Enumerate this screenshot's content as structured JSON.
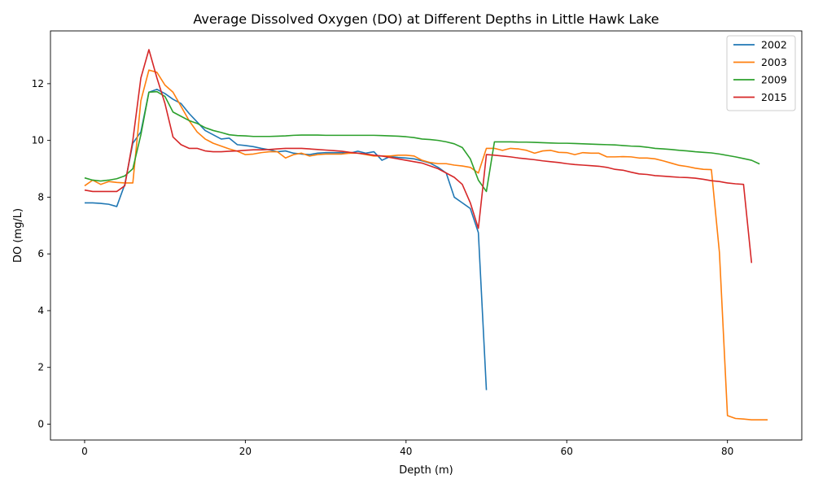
{
  "chart_data": {
    "type": "line",
    "title": "Average Dissolved Oxygen (DO) at Different Depths in Little Hawk Lake",
    "xlabel": "Depth (m)",
    "ylabel": "DO (mg/L)",
    "xlim": [
      -4.25,
      89.25
    ],
    "ylim": [
      -0.56,
      13.86
    ],
    "xticks": [
      0,
      20,
      40,
      60,
      80
    ],
    "yticks": [
      0,
      2,
      4,
      6,
      8,
      10,
      12
    ],
    "grid": false,
    "legend_position": "top-right",
    "series": [
      {
        "name": "2002",
        "color": "#1f77b4",
        "points": [
          [
            0,
            7.8
          ],
          [
            1,
            7.8
          ],
          [
            2,
            7.78
          ],
          [
            3,
            7.75
          ],
          [
            4,
            7.67
          ],
          [
            5,
            8.45
          ],
          [
            6,
            9.9
          ],
          [
            7,
            10.3
          ],
          [
            8,
            11.7
          ],
          [
            9,
            11.8
          ],
          [
            10,
            11.65
          ],
          [
            11,
            11.45
          ],
          [
            12,
            11.3
          ],
          [
            13,
            10.95
          ],
          [
            14,
            10.65
          ],
          [
            15,
            10.35
          ],
          [
            16,
            10.2
          ],
          [
            17,
            10.05
          ],
          [
            18,
            10.08
          ],
          [
            19,
            9.85
          ],
          [
            20,
            9.82
          ],
          [
            21,
            9.78
          ],
          [
            22,
            9.72
          ],
          [
            23,
            9.67
          ],
          [
            24,
            9.6
          ],
          [
            25,
            9.63
          ],
          [
            26,
            9.55
          ],
          [
            27,
            9.52
          ],
          [
            28,
            9.5
          ],
          [
            29,
            9.55
          ],
          [
            30,
            9.57
          ],
          [
            31,
            9.57
          ],
          [
            32,
            9.57
          ],
          [
            33,
            9.55
          ],
          [
            34,
            9.62
          ],
          [
            35,
            9.55
          ],
          [
            36,
            9.6
          ],
          [
            37,
            9.3
          ],
          [
            38,
            9.43
          ],
          [
            39,
            9.4
          ],
          [
            40,
            9.38
          ],
          [
            41,
            9.35
          ],
          [
            42,
            9.28
          ],
          [
            43,
            9.2
          ],
          [
            44,
            9.05
          ],
          [
            45,
            8.85
          ],
          [
            46,
            8.0
          ],
          [
            47,
            7.8
          ],
          [
            48,
            7.6
          ],
          [
            49,
            6.75
          ],
          [
            50,
            1.2
          ]
        ]
      },
      {
        "name": "2003",
        "color": "#ff7f0e",
        "points": [
          [
            0,
            8.4
          ],
          [
            1,
            8.6
          ],
          [
            2,
            8.45
          ],
          [
            3,
            8.55
          ],
          [
            4,
            8.52
          ],
          [
            5,
            8.5
          ],
          [
            6,
            8.5
          ],
          [
            7,
            11.4
          ],
          [
            8,
            12.48
          ],
          [
            9,
            12.4
          ],
          [
            10,
            11.95
          ],
          [
            11,
            11.7
          ],
          [
            12,
            11.2
          ],
          [
            13,
            10.7
          ],
          [
            14,
            10.3
          ],
          [
            15,
            10.05
          ],
          [
            16,
            9.9
          ],
          [
            17,
            9.8
          ],
          [
            18,
            9.7
          ],
          [
            19,
            9.62
          ],
          [
            20,
            9.5
          ],
          [
            21,
            9.52
          ],
          [
            22,
            9.57
          ],
          [
            23,
            9.6
          ],
          [
            24,
            9.6
          ],
          [
            25,
            9.38
          ],
          [
            26,
            9.5
          ],
          [
            27,
            9.55
          ],
          [
            28,
            9.45
          ],
          [
            29,
            9.5
          ],
          [
            30,
            9.52
          ],
          [
            31,
            9.52
          ],
          [
            32,
            9.52
          ],
          [
            33,
            9.55
          ],
          [
            34,
            9.55
          ],
          [
            35,
            9.5
          ],
          [
            36,
            9.45
          ],
          [
            37,
            9.45
          ],
          [
            38,
            9.45
          ],
          [
            39,
            9.48
          ],
          [
            40,
            9.48
          ],
          [
            41,
            9.45
          ],
          [
            42,
            9.3
          ],
          [
            43,
            9.22
          ],
          [
            44,
            9.18
          ],
          [
            45,
            9.18
          ],
          [
            46,
            9.13
          ],
          [
            47,
            9.1
          ],
          [
            48,
            9.05
          ],
          [
            49,
            8.85
          ],
          [
            50,
            9.72
          ],
          [
            51,
            9.72
          ],
          [
            52,
            9.65
          ],
          [
            53,
            9.72
          ],
          [
            54,
            9.7
          ],
          [
            55,
            9.65
          ],
          [
            56,
            9.55
          ],
          [
            57,
            9.63
          ],
          [
            58,
            9.65
          ],
          [
            59,
            9.58
          ],
          [
            60,
            9.57
          ],
          [
            61,
            9.5
          ],
          [
            62,
            9.57
          ],
          [
            63,
            9.55
          ],
          [
            64,
            9.55
          ],
          [
            65,
            9.42
          ],
          [
            66,
            9.42
          ],
          [
            67,
            9.43
          ],
          [
            68,
            9.42
          ],
          [
            69,
            9.38
          ],
          [
            70,
            9.38
          ],
          [
            71,
            9.35
          ],
          [
            72,
            9.28
          ],
          [
            73,
            9.2
          ],
          [
            74,
            9.12
          ],
          [
            75,
            9.08
          ],
          [
            76,
            9.02
          ],
          [
            77,
            8.98
          ],
          [
            78,
            8.97
          ],
          [
            79,
            6.05
          ],
          [
            80,
            0.3
          ],
          [
            81,
            0.2
          ],
          [
            82,
            0.18
          ],
          [
            83,
            0.15
          ],
          [
            84,
            0.15
          ],
          [
            85,
            0.15
          ]
        ]
      },
      {
        "name": "2009",
        "color": "#2ca02c",
        "points": [
          [
            0,
            8.68
          ],
          [
            1,
            8.6
          ],
          [
            2,
            8.57
          ],
          [
            3,
            8.6
          ],
          [
            4,
            8.65
          ],
          [
            5,
            8.75
          ],
          [
            6,
            9.0
          ],
          [
            7,
            10.2
          ],
          [
            8,
            11.7
          ],
          [
            9,
            11.72
          ],
          [
            10,
            11.55
          ],
          [
            11,
            11.0
          ],
          [
            12,
            10.85
          ],
          [
            13,
            10.7
          ],
          [
            14,
            10.6
          ],
          [
            15,
            10.45
          ],
          [
            16,
            10.35
          ],
          [
            17,
            10.28
          ],
          [
            18,
            10.2
          ],
          [
            19,
            10.17
          ],
          [
            20,
            10.16
          ],
          [
            21,
            10.14
          ],
          [
            22,
            10.14
          ],
          [
            23,
            10.14
          ],
          [
            24,
            10.15
          ],
          [
            25,
            10.16
          ],
          [
            26,
            10.18
          ],
          [
            27,
            10.19
          ],
          [
            28,
            10.19
          ],
          [
            29,
            10.19
          ],
          [
            30,
            10.18
          ],
          [
            31,
            10.18
          ],
          [
            32,
            10.18
          ],
          [
            33,
            10.18
          ],
          [
            34,
            10.18
          ],
          [
            35,
            10.18
          ],
          [
            36,
            10.18
          ],
          [
            37,
            10.17
          ],
          [
            38,
            10.16
          ],
          [
            39,
            10.15
          ],
          [
            40,
            10.13
          ],
          [
            41,
            10.1
          ],
          [
            42,
            10.05
          ],
          [
            43,
            10.03
          ],
          [
            44,
            10.0
          ],
          [
            45,
            9.95
          ],
          [
            46,
            9.88
          ],
          [
            47,
            9.75
          ],
          [
            48,
            9.35
          ],
          [
            49,
            8.6
          ],
          [
            50,
            8.2
          ],
          [
            51,
            9.95
          ],
          [
            52,
            9.95
          ],
          [
            53,
            9.95
          ],
          [
            54,
            9.94
          ],
          [
            55,
            9.94
          ],
          [
            56,
            9.93
          ],
          [
            57,
            9.92
          ],
          [
            58,
            9.91
          ],
          [
            59,
            9.9
          ],
          [
            60,
            9.9
          ],
          [
            61,
            9.89
          ],
          [
            62,
            9.88
          ],
          [
            63,
            9.87
          ],
          [
            64,
            9.86
          ],
          [
            65,
            9.85
          ],
          [
            66,
            9.84
          ],
          [
            67,
            9.82
          ],
          [
            68,
            9.8
          ],
          [
            69,
            9.79
          ],
          [
            70,
            9.76
          ],
          [
            71,
            9.72
          ],
          [
            72,
            9.7
          ],
          [
            73,
            9.68
          ],
          [
            74,
            9.65
          ],
          [
            75,
            9.63
          ],
          [
            76,
            9.6
          ],
          [
            77,
            9.58
          ],
          [
            78,
            9.56
          ],
          [
            79,
            9.52
          ],
          [
            80,
            9.47
          ],
          [
            81,
            9.42
          ],
          [
            82,
            9.36
          ],
          [
            83,
            9.3
          ],
          [
            84,
            9.17
          ]
        ]
      },
      {
        "name": "2015",
        "color": "#d62728",
        "points": [
          [
            0,
            8.25
          ],
          [
            1,
            8.2
          ],
          [
            2,
            8.2
          ],
          [
            3,
            8.2
          ],
          [
            4,
            8.2
          ],
          [
            5,
            8.4
          ],
          [
            6,
            10.0
          ],
          [
            7,
            12.2
          ],
          [
            8,
            13.2
          ],
          [
            9,
            12.2
          ],
          [
            10,
            11.3
          ],
          [
            11,
            10.12
          ],
          [
            12,
            9.85
          ],
          [
            13,
            9.72
          ],
          [
            14,
            9.72
          ],
          [
            15,
            9.63
          ],
          [
            16,
            9.6
          ],
          [
            17,
            9.6
          ],
          [
            18,
            9.62
          ],
          [
            19,
            9.63
          ],
          [
            20,
            9.65
          ],
          [
            21,
            9.67
          ],
          [
            22,
            9.67
          ],
          [
            23,
            9.68
          ],
          [
            24,
            9.7
          ],
          [
            25,
            9.72
          ],
          [
            26,
            9.72
          ],
          [
            27,
            9.72
          ],
          [
            28,
            9.7
          ],
          [
            29,
            9.68
          ],
          [
            30,
            9.66
          ],
          [
            31,
            9.64
          ],
          [
            32,
            9.62
          ],
          [
            33,
            9.58
          ],
          [
            34,
            9.55
          ],
          [
            35,
            9.52
          ],
          [
            36,
            9.48
          ],
          [
            37,
            9.45
          ],
          [
            38,
            9.4
          ],
          [
            39,
            9.35
          ],
          [
            40,
            9.3
          ],
          [
            41,
            9.25
          ],
          [
            42,
            9.2
          ],
          [
            43,
            9.1
          ],
          [
            44,
            9.0
          ],
          [
            45,
            8.85
          ],
          [
            46,
            8.7
          ],
          [
            47,
            8.45
          ],
          [
            48,
            7.8
          ],
          [
            49,
            6.9
          ],
          [
            50,
            9.5
          ],
          [
            51,
            9.48
          ],
          [
            52,
            9.45
          ],
          [
            53,
            9.42
          ],
          [
            54,
            9.38
          ],
          [
            55,
            9.35
          ],
          [
            56,
            9.32
          ],
          [
            57,
            9.28
          ],
          [
            58,
            9.25
          ],
          [
            59,
            9.22
          ],
          [
            60,
            9.18
          ],
          [
            61,
            9.15
          ],
          [
            62,
            9.13
          ],
          [
            63,
            9.11
          ],
          [
            64,
            9.09
          ],
          [
            65,
            9.05
          ],
          [
            66,
            8.98
          ],
          [
            67,
            8.95
          ],
          [
            68,
            8.88
          ],
          [
            69,
            8.82
          ],
          [
            70,
            8.8
          ],
          [
            71,
            8.76
          ],
          [
            72,
            8.74
          ],
          [
            73,
            8.72
          ],
          [
            74,
            8.7
          ],
          [
            75,
            8.69
          ],
          [
            76,
            8.67
          ],
          [
            77,
            8.63
          ],
          [
            78,
            8.58
          ],
          [
            79,
            8.55
          ],
          [
            80,
            8.5
          ],
          [
            81,
            8.47
          ],
          [
            82,
            8.45
          ],
          [
            83,
            5.68
          ]
        ]
      }
    ]
  }
}
